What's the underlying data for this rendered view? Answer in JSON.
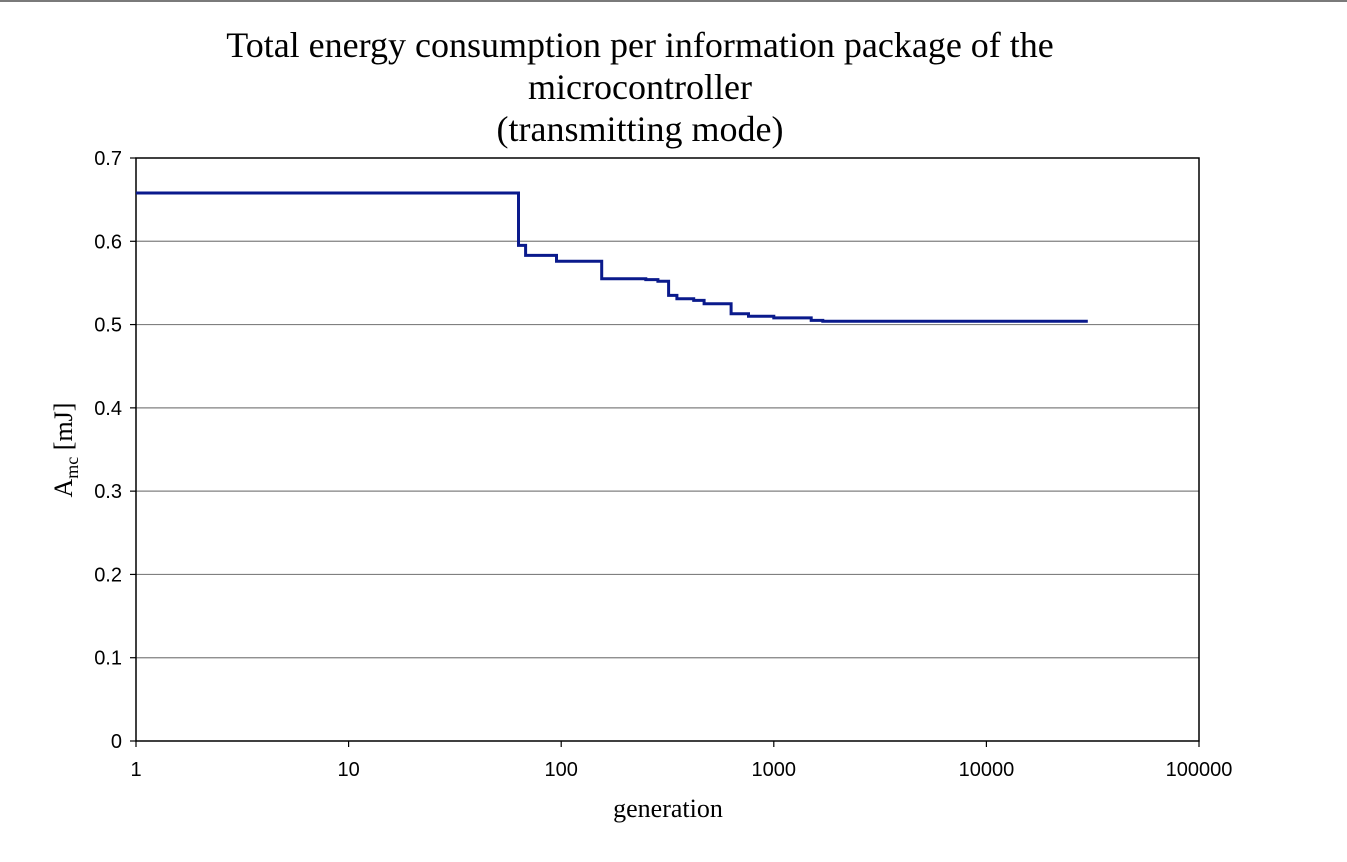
{
  "chart_data": {
    "type": "line",
    "title_lines": [
      "Total energy consumption per information package of the",
      "microcontroller",
      "(transmitting mode)"
    ],
    "ylabel": {
      "main": "A",
      "sub": "mc",
      "unit": " [mJ]"
    },
    "xlabel": "generation",
    "x_scale": "log",
    "xlim": [
      1,
      100000
    ],
    "ylim": [
      0,
      0.7
    ],
    "x_ticks": [
      1,
      10,
      100,
      1000,
      10000,
      100000
    ],
    "x_tick_labels": [
      "1",
      "10",
      "100",
      "1000",
      "10000",
      "100000"
    ],
    "y_ticks": [
      0,
      0.1,
      0.2,
      0.3,
      0.4,
      0.5,
      0.6,
      0.7
    ],
    "y_tick_labels": [
      "0",
      "0.1",
      "0.2",
      "0.3",
      "0.4",
      "0.5",
      "0.6",
      "0.7"
    ],
    "grid": "horizontal",
    "legend": "none",
    "series": [
      {
        "color": "#0a1a8c",
        "points": [
          [
            1,
            0.658
          ],
          [
            63,
            0.658
          ],
          [
            63,
            0.595
          ],
          [
            68,
            0.595
          ],
          [
            68,
            0.583
          ],
          [
            95,
            0.583
          ],
          [
            95,
            0.576
          ],
          [
            155,
            0.576
          ],
          [
            155,
            0.555
          ],
          [
            250,
            0.555
          ],
          [
            250,
            0.554
          ],
          [
            285,
            0.554
          ],
          [
            285,
            0.552
          ],
          [
            320,
            0.552
          ],
          [
            320,
            0.535
          ],
          [
            350,
            0.535
          ],
          [
            350,
            0.531
          ],
          [
            420,
            0.531
          ],
          [
            420,
            0.529
          ],
          [
            470,
            0.529
          ],
          [
            470,
            0.525
          ],
          [
            630,
            0.525
          ],
          [
            630,
            0.513
          ],
          [
            760,
            0.513
          ],
          [
            760,
            0.51
          ],
          [
            1000,
            0.51
          ],
          [
            1000,
            0.508
          ],
          [
            1500,
            0.508
          ],
          [
            1500,
            0.505
          ],
          [
            1700,
            0.505
          ],
          [
            1700,
            0.504
          ],
          [
            30000,
            0.504
          ]
        ]
      }
    ]
  }
}
